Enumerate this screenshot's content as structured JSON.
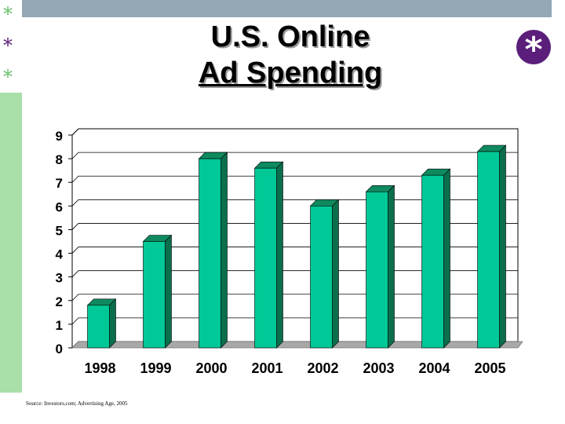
{
  "slide": {
    "title_line1": "U.S. Online",
    "title_line2": "Ad Spending",
    "bullet_glyph": "*",
    "corner_badge_glyph": "*",
    "source": "Source: Investors.com; Advertising Age, 2005"
  },
  "colors": {
    "top_bar": "#94a8b6",
    "left_bar": "#a9dfa9",
    "bullet_green": "#6bbf6b",
    "bullet_purple": "#5b1e7a",
    "bar_front": "#00c896",
    "bar_top": "#0f8a5f",
    "bar_side": "#0b6e4c",
    "floor": "#a8a8a8"
  },
  "chart_data": {
    "type": "bar",
    "categories": [
      "1998",
      "1999",
      "2000",
      "2001",
      "2002",
      "2003",
      "2004",
      "2005"
    ],
    "values": [
      1.8,
      4.5,
      8.0,
      7.6,
      6.0,
      6.6,
      7.3,
      8.3
    ],
    "yticks": [
      "0",
      "1",
      "2",
      "3",
      "4",
      "5",
      "6",
      "7",
      "8",
      "9"
    ],
    "ylim": [
      0,
      9
    ],
    "title": "",
    "xlabel": "",
    "ylabel": "",
    "grid": true,
    "legend": "none"
  }
}
